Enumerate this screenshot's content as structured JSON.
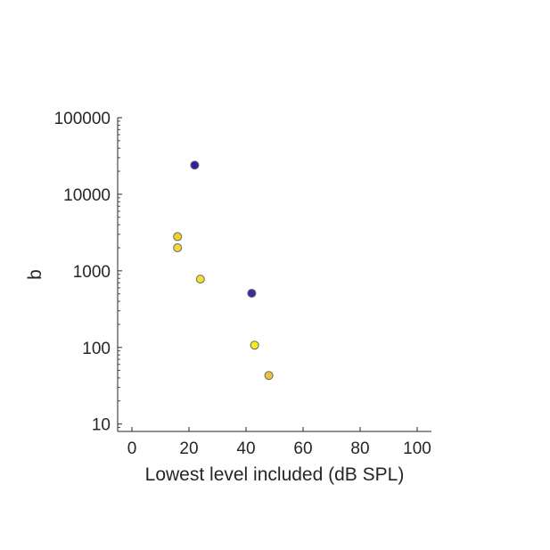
{
  "chart_data": {
    "type": "scatter",
    "title": "",
    "xlabel": "Lowest level included (dB SPL)",
    "ylabel": "b",
    "xlim": [
      -5,
      105
    ],
    "ylim": [
      8,
      100000
    ],
    "yscale": "log",
    "x_ticks": [
      0,
      20,
      40,
      60,
      80,
      100
    ],
    "x_tick_labels": [
      "0",
      "20",
      "40",
      "60",
      "80",
      "100"
    ],
    "y_ticks": [
      10,
      100,
      1000,
      10000,
      100000
    ],
    "y_tick_labels": [
      "10",
      "100",
      "1000",
      "10000",
      "100000"
    ],
    "grid": false,
    "points": [
      {
        "x": 22,
        "y": 24000,
        "color": "#2e1f9e"
      },
      {
        "x": 16,
        "y": 2800,
        "color": "#f2d024"
      },
      {
        "x": 16,
        "y": 2000,
        "color": "#f2d63a"
      },
      {
        "x": 24,
        "y": 780,
        "color": "#f2e030"
      },
      {
        "x": 42,
        "y": 510,
        "color": "#3a2ca0"
      },
      {
        "x": 43,
        "y": 107,
        "color": "#f5ee1c"
      },
      {
        "x": 48,
        "y": 43,
        "color": "#eec23a"
      }
    ]
  }
}
